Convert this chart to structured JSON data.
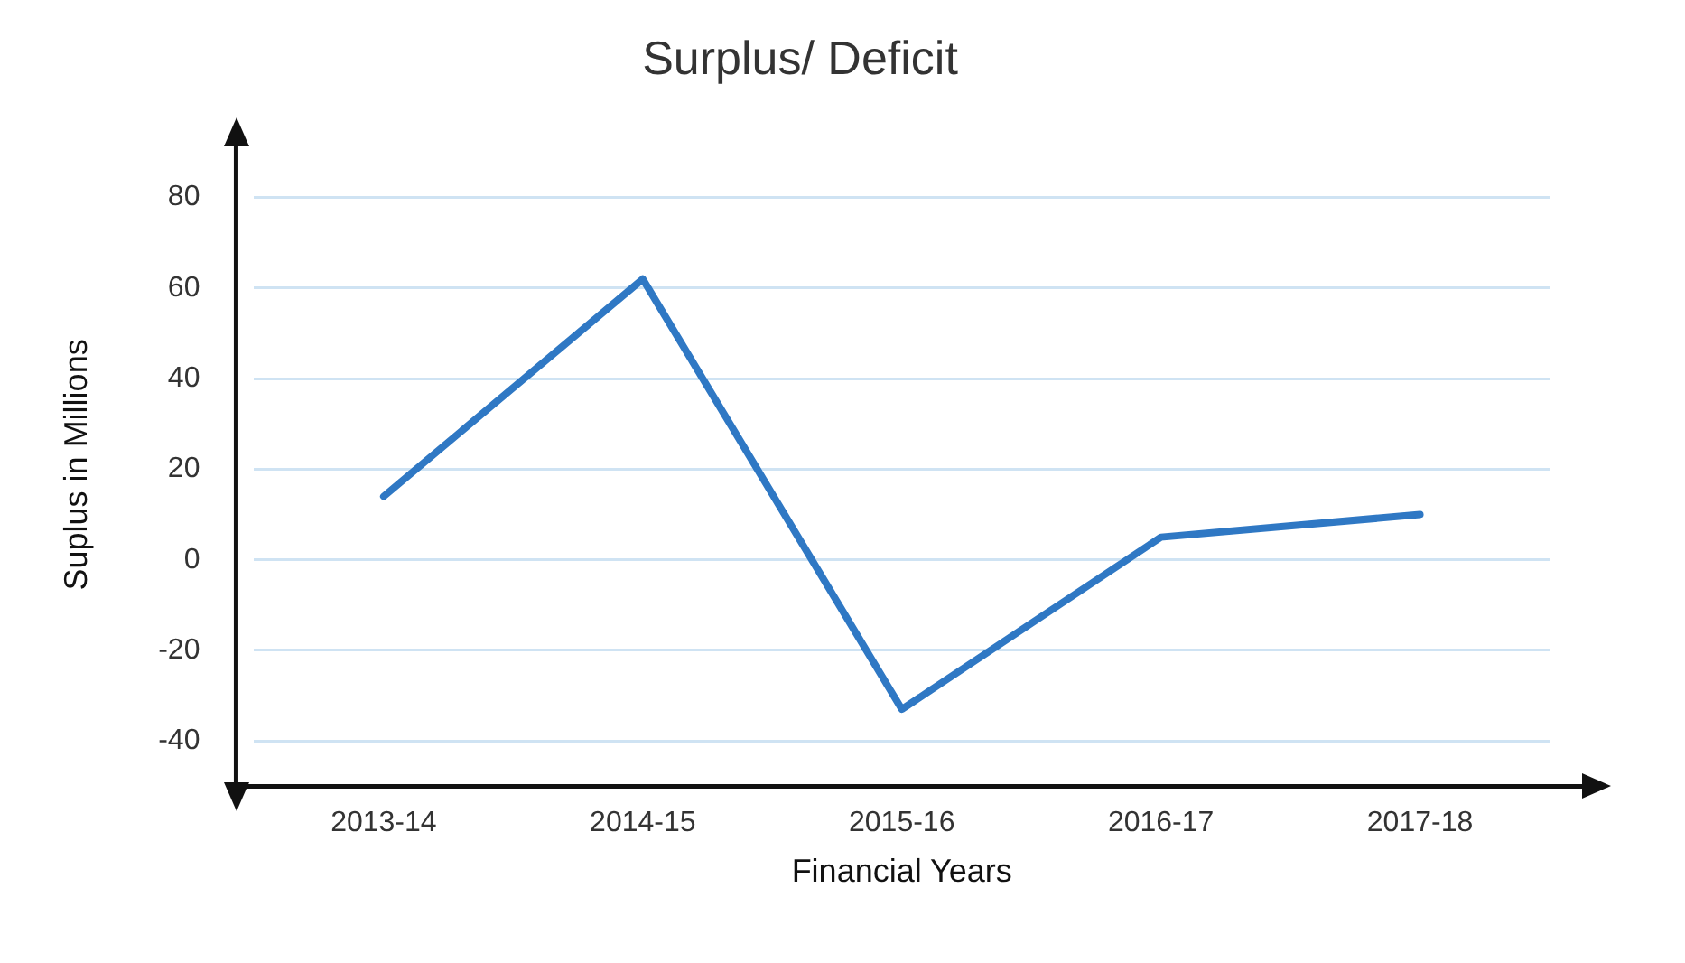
{
  "chart_data": {
    "type": "line",
    "title": "Surplus/ Deficit",
    "xlabel": "Financial Years",
    "ylabel": "Suplus in Millions",
    "categories": [
      "2013-14",
      "2014-15",
      "2015-16",
      "2016-17",
      "2017-18"
    ],
    "series": [
      {
        "color": "#2f78c4",
        "values": [
          14,
          62,
          -33,
          5,
          10
        ]
      }
    ],
    "ylim": [
      -50,
      92
    ],
    "yticks": [
      -40,
      -20,
      0,
      20,
      40,
      60,
      80
    ],
    "grid": "y",
    "legend": false,
    "marker": "none",
    "line_style": "solid"
  }
}
